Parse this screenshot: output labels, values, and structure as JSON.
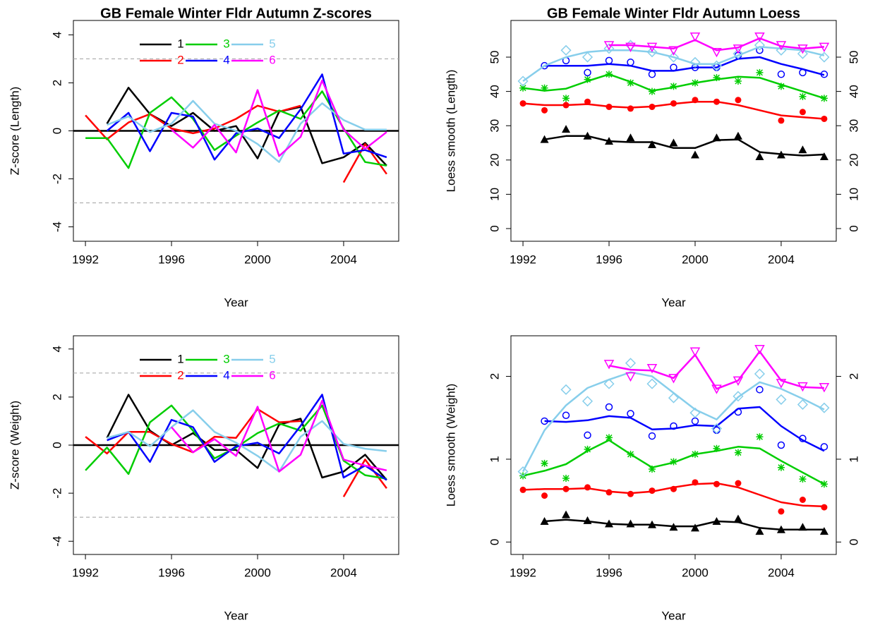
{
  "chart_data": [
    {
      "type": "line",
      "title": "GB Female Winter Fldr Autumn  Z-scores",
      "xlabel": "Year",
      "ylabel": "Z-score (Length)",
      "x": [
        1992,
        1993,
        1994,
        1995,
        1996,
        1997,
        1998,
        1999,
        2000,
        2001,
        2002,
        2003,
        2004,
        2005,
        2006
      ],
      "xlim": [
        1991.44,
        2006.56
      ],
      "xticks": [
        1992,
        1996,
        2000,
        2004
      ],
      "ylim": [
        -4.6,
        4.6
      ],
      "yticks": [
        -4,
        -2,
        0,
        2,
        4
      ],
      "hlines": [
        {
          "value": 3,
          "dash": true
        },
        {
          "value": 0,
          "dash": false
        },
        {
          "value": -3,
          "dash": true
        }
      ],
      "series": [
        {
          "name": "1",
          "color": "#000000",
          "values": [
            null,
            0.3,
            1.8,
            0.7,
            0.2,
            0.75,
            0.0,
            0.2,
            -1.15,
            0.8,
            1.0,
            -1.35,
            -1.1,
            -0.5,
            -1.45
          ]
        },
        {
          "name": "2",
          "color": "#ff0000",
          "values": [
            0.65,
            -0.35,
            0.35,
            0.7,
            0.1,
            -0.1,
            0.1,
            0.5,
            1.05,
            0.8,
            1.05,
            null,
            -2.15,
            -0.55,
            -1.8
          ]
        },
        {
          "name": "3",
          "color": "#00cd00",
          "values": [
            -0.3,
            -0.3,
            -1.55,
            0.75,
            1.4,
            0.5,
            -0.8,
            -0.2,
            0.35,
            0.85,
            0.5,
            1.65,
            0.1,
            -1.3,
            -1.45
          ]
        },
        {
          "name": "4",
          "color": "#0000ff",
          "values": [
            null,
            0.0,
            0.75,
            -0.85,
            0.75,
            0.6,
            -1.2,
            -0.1,
            0.1,
            -0.3,
            0.9,
            2.35,
            -0.95,
            -0.8,
            -1.1
          ]
        },
        {
          "name": "5",
          "color": "#87ceeb",
          "values": [
            null,
            0.25,
            0.6,
            -0.05,
            0.3,
            1.25,
            0.3,
            0.0,
            -0.55,
            -1.3,
            0.3,
            1.15,
            0.45,
            0.05,
            0.05
          ]
        },
        {
          "name": "6",
          "color": "#ff00ff",
          "values": [
            null,
            null,
            null,
            null,
            0.05,
            -0.7,
            0.25,
            -0.9,
            1.7,
            -1.05,
            -0.25,
            2.1,
            0.05,
            -0.75,
            -0.05
          ]
        }
      ]
    },
    {
      "type": "scatter",
      "title": "GB Female Winter Fldr Autumn  Loess",
      "xlabel": "Year",
      "ylabel": "Loess smooth (Length)",
      "x": [
        1992,
        1993,
        1994,
        1995,
        1996,
        1997,
        1998,
        1999,
        2000,
        2001,
        2002,
        2003,
        2004,
        2005,
        2006
      ],
      "xlim": [
        1991.44,
        2006.56
      ],
      "xticks": [
        1992,
        1996,
        2000,
        2004
      ],
      "ylim": [
        -3.7,
        60.7
      ],
      "yticks": [
        0,
        10,
        20,
        30,
        40,
        50
      ],
      "y2lim": [
        -3.7,
        60.7
      ],
      "y2ticks": [
        0,
        10,
        20,
        30,
        40,
        50
      ],
      "series": [
        {
          "color": "#000000",
          "marker": "triangle",
          "values": [
            null,
            26,
            29,
            27,
            25.5,
            26.5,
            24.5,
            25,
            21.5,
            26.5,
            27,
            21,
            21.5,
            23,
            21
          ],
          "smooth": [
            null,
            26,
            27,
            27,
            25.5,
            25.2,
            25.2,
            23.5,
            23.5,
            25.8,
            26,
            22.3,
            21.7,
            21.3,
            21.6
          ]
        },
        {
          "color": "#ff0000",
          "marker": "circle-filled",
          "values": [
            36.5,
            34.5,
            36,
            37,
            35.5,
            35,
            35.5,
            36.5,
            37.5,
            37,
            37.5,
            null,
            31.5,
            34,
            32
          ],
          "smooth": [
            36.5,
            36,
            36,
            36.3,
            35.6,
            35.3,
            35.6,
            36.4,
            37,
            37,
            36,
            34.5,
            33,
            32.5,
            32
          ]
        },
        {
          "color": "#00cd00",
          "marker": "asterisk",
          "values": [
            41,
            41,
            38,
            43.5,
            45,
            42.5,
            40,
            41.5,
            42.5,
            44,
            43,
            45.5,
            41.5,
            38.5,
            38
          ],
          "smooth": [
            41,
            40.2,
            40.8,
            43,
            45,
            42.8,
            40.2,
            41.2,
            42.5,
            43.5,
            44.3,
            44,
            42,
            40,
            38
          ]
        },
        {
          "color": "#0000ff",
          "marker": "circle-open",
          "values": [
            null,
            47.5,
            49,
            45.5,
            49,
            48.5,
            45,
            47,
            47,
            47,
            50.5,
            52,
            45,
            45.5,
            45
          ],
          "smooth": [
            null,
            47.5,
            47.5,
            47.5,
            48,
            47.5,
            46,
            46,
            47,
            47,
            49.5,
            50,
            48,
            46.5,
            44.8
          ]
        },
        {
          "color": "#87ceeb",
          "marker": "diamond",
          "values": [
            43,
            null,
            52,
            50,
            52.5,
            53.5,
            51.5,
            50,
            48.5,
            47.5,
            51,
            53.5,
            52,
            51,
            50
          ],
          "smooth": [
            43,
            47.5,
            50,
            51.5,
            52,
            52,
            51.5,
            50,
            48,
            48,
            50.5,
            53,
            52.5,
            52,
            50.5
          ]
        },
        {
          "color": "#ff00ff",
          "marker": "triangle-down",
          "values": [
            null,
            null,
            null,
            null,
            53.5,
            53,
            53,
            52,
            56,
            51.5,
            52.5,
            56,
            53.5,
            52.5,
            53
          ],
          "smooth": [
            null,
            null,
            null,
            null,
            53.5,
            53.5,
            53,
            52.5,
            55,
            52,
            52.8,
            55.5,
            53.2,
            52.5,
            53
          ]
        }
      ]
    },
    {
      "type": "line",
      "xlabel": "Year",
      "ylabel": "Z-score (Weight)",
      "x": [
        1992,
        1993,
        1994,
        1995,
        1996,
        1997,
        1998,
        1999,
        2000,
        2001,
        2002,
        2003,
        2004,
        2005,
        2006
      ],
      "xlim": [
        1991.44,
        2006.56
      ],
      "xticks": [
        1992,
        1996,
        2000,
        2004
      ],
      "ylim": [
        -4.55,
        4.55
      ],
      "yticks": [
        -4,
        -2,
        0,
        2,
        4
      ],
      "hlines": [
        {
          "value": 3,
          "dash": true
        },
        {
          "value": 0,
          "dash": false
        },
        {
          "value": -3,
          "dash": true
        }
      ],
      "series": [
        {
          "name": "1",
          "color": "#000000",
          "values": [
            null,
            0.3,
            2.1,
            0.6,
            0.0,
            0.5,
            -0.2,
            -0.2,
            -0.95,
            0.85,
            1.1,
            -1.35,
            -1.1,
            -0.4,
            -1.45
          ]
        },
        {
          "name": "2",
          "color": "#ff0000",
          "values": [
            0.35,
            -0.35,
            0.55,
            0.55,
            0.05,
            -0.3,
            0.35,
            0.3,
            1.5,
            0.95,
            1.0,
            null,
            -2.15,
            -0.6,
            -1.8
          ]
        },
        {
          "name": "3",
          "color": "#00cd00",
          "values": [
            -1.05,
            -0.1,
            -1.2,
            0.95,
            1.65,
            0.6,
            -0.55,
            -0.1,
            0.5,
            0.9,
            0.6,
            1.65,
            -0.65,
            -1.25,
            -1.4
          ]
        },
        {
          "name": "4",
          "color": "#0000ff",
          "values": [
            null,
            0.2,
            0.55,
            -0.7,
            1.05,
            0.75,
            -0.7,
            -0.05,
            0.1,
            -0.35,
            0.8,
            2.1,
            -1.35,
            -0.85,
            -1.45
          ]
        },
        {
          "name": "5",
          "color": "#87ceeb",
          "values": [
            null,
            0.3,
            0.55,
            -0.05,
            0.75,
            1.45,
            0.55,
            0.1,
            -0.45,
            -1.1,
            0.35,
            1.0,
            0.05,
            -0.15,
            -0.25
          ]
        },
        {
          "name": "6",
          "color": "#ff00ff",
          "values": [
            null,
            null,
            null,
            null,
            0.75,
            -0.3,
            0.25,
            -0.45,
            1.6,
            -1.1,
            -0.4,
            1.85,
            -0.6,
            -0.85,
            -1.05
          ]
        }
      ]
    },
    {
      "type": "scatter",
      "xlabel": "Year",
      "ylabel": "Loess smooth (Weight)",
      "x": [
        1992,
        1993,
        1994,
        1995,
        1996,
        1997,
        1998,
        1999,
        2000,
        2001,
        2002,
        2003,
        2004,
        2005,
        2006
      ],
      "xlim": [
        1991.44,
        2006.56
      ],
      "xticks": [
        1992,
        1996,
        2000,
        2004
      ],
      "ylim": [
        -0.15,
        2.49
      ],
      "yticks": [
        0,
        1,
        2
      ],
      "y2lim": [
        -0.15,
        2.49
      ],
      "y2ticks": [
        0,
        1,
        2
      ],
      "series": [
        {
          "color": "#000000",
          "marker": "triangle",
          "values": [
            null,
            0.25,
            0.33,
            0.26,
            0.22,
            0.22,
            0.21,
            0.18,
            0.17,
            0.25,
            0.28,
            0.13,
            0.15,
            0.18,
            0.13
          ],
          "smooth": [
            null,
            0.25,
            0.27,
            0.25,
            0.22,
            0.21,
            0.21,
            0.19,
            0.19,
            0.25,
            0.24,
            0.17,
            0.15,
            0.15,
            0.15
          ]
        },
        {
          "color": "#ff0000",
          "marker": "circle-filled",
          "values": [
            0.63,
            0.56,
            0.64,
            0.66,
            0.6,
            0.58,
            0.62,
            0.64,
            0.72,
            0.7,
            0.71,
            null,
            0.37,
            0.51,
            0.42
          ],
          "smooth": [
            0.63,
            0.64,
            0.64,
            0.65,
            0.61,
            0.59,
            0.61,
            0.66,
            0.7,
            0.71,
            0.66,
            0.57,
            0.48,
            0.44,
            0.43
          ]
        },
        {
          "color": "#00cd00",
          "marker": "asterisk",
          "values": [
            0.8,
            0.95,
            0.77,
            1.12,
            1.26,
            1.06,
            0.88,
            0.97,
            1.06,
            1.13,
            1.08,
            1.27,
            0.9,
            0.76,
            0.7
          ],
          "smooth": [
            0.8,
            0.86,
            0.94,
            1.1,
            1.23,
            1.06,
            0.9,
            0.96,
            1.06,
            1.1,
            1.15,
            1.13,
            0.98,
            0.84,
            0.7
          ]
        },
        {
          "color": "#0000ff",
          "marker": "circle-open",
          "values": [
            null,
            1.46,
            1.53,
            1.29,
            1.63,
            1.55,
            1.28,
            1.4,
            1.46,
            1.35,
            1.57,
            1.84,
            1.17,
            1.25,
            1.15
          ],
          "smooth": [
            null,
            1.46,
            1.45,
            1.47,
            1.52,
            1.5,
            1.36,
            1.37,
            1.41,
            1.4,
            1.61,
            1.63,
            1.4,
            1.23,
            1.1
          ]
        },
        {
          "color": "#87ceeb",
          "marker": "diamond",
          "values": [
            0.85,
            null,
            1.84,
            1.7,
            1.91,
            2.16,
            1.91,
            1.74,
            1.56,
            1.37,
            1.76,
            2.03,
            1.72,
            1.66,
            1.62
          ],
          "smooth": [
            0.85,
            1.35,
            1.65,
            1.86,
            1.96,
            2.05,
            2.0,
            1.8,
            1.6,
            1.48,
            1.75,
            1.93,
            1.85,
            1.73,
            1.6
          ]
        },
        {
          "color": "#ff00ff",
          "marker": "triangle-down",
          "values": [
            null,
            null,
            null,
            null,
            2.15,
            2.0,
            2.1,
            1.98,
            2.3,
            1.85,
            1.95,
            2.33,
            1.92,
            1.88,
            1.87
          ],
          "smooth": [
            null,
            null,
            null,
            null,
            2.13,
            2.08,
            2.07,
            1.98,
            2.26,
            1.85,
            1.95,
            2.3,
            1.95,
            1.87,
            1.86
          ]
        }
      ]
    }
  ]
}
